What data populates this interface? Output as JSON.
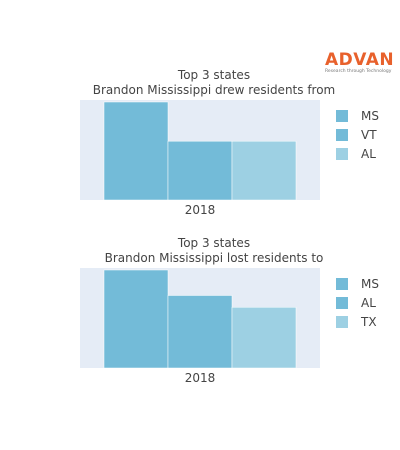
{
  "logo": {
    "name": "ADVAN",
    "tagline": "Research through Technology"
  },
  "chart_data": [
    {
      "type": "bar",
      "title": "Top 3 states",
      "subtitle": "Brandon Mississippi drew residents from",
      "categories": [
        "2018"
      ],
      "series": [
        {
          "name": "MS",
          "values": [
            100
          ],
          "color": "#73BBD8"
        },
        {
          "name": "VT",
          "values": [
            60
          ],
          "color": "#73BBD8"
        },
        {
          "name": "AL",
          "values": [
            60
          ],
          "color": "#9DD0E3"
        }
      ],
      "ylim": [
        0,
        100
      ],
      "grid": true,
      "legend": "right"
    },
    {
      "type": "bar",
      "title": "Top 3 states",
      "subtitle": "Brandon Mississippi lost residents to",
      "categories": [
        "2018"
      ],
      "series": [
        {
          "name": "MS",
          "values": [
            100
          ],
          "color": "#73BBD8"
        },
        {
          "name": "AL",
          "values": [
            74
          ],
          "color": "#73BBD8"
        },
        {
          "name": "TX",
          "values": [
            62
          ],
          "color": "#9DD0E3"
        }
      ],
      "ylim": [
        0,
        100
      ],
      "grid": true,
      "legend": "right"
    }
  ]
}
